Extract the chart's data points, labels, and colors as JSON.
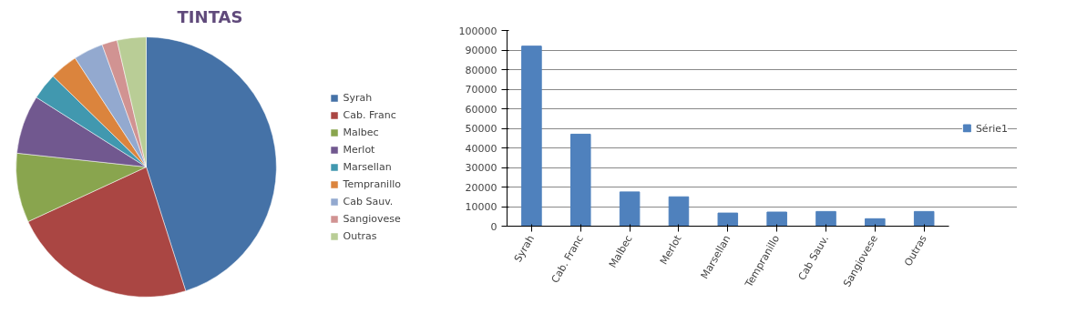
{
  "chart_data": [
    {
      "type": "pie",
      "title": "TINTAS",
      "categories": [
        "Syrah",
        "Cab. Franc",
        "Malbec",
        "Merlot",
        "Marsellan",
        "Tempranillo",
        "Cab Sauv.",
        "Sangiovese",
        "Outras"
      ],
      "values": [
        45.1,
        23.0,
        8.6,
        7.3,
        3.3,
        3.5,
        3.7,
        1.9,
        3.6
      ],
      "colors": [
        "#4572a7",
        "#aa4643",
        "#89a54e",
        "#71588f",
        "#4198af",
        "#db843d",
        "#93a9cf",
        "#d19392",
        "#b9cd96"
      ],
      "legend": "right"
    },
    {
      "type": "bar",
      "categories": [
        "Syrah",
        "Cab. Franc",
        "Malbec",
        "Merlot",
        "Marsellan",
        "Tempranillo",
        "Cab Sauv.",
        "Sangiovese",
        "Outras"
      ],
      "series": [
        {
          "name": "Série1",
          "color": "#4f81bd",
          "values": [
            92000,
            47000,
            17500,
            15000,
            6700,
            7200,
            7500,
            3800,
            7500
          ]
        }
      ],
      "ylim": [
        0,
        100000
      ],
      "yticks": [
        0,
        10000,
        20000,
        30000,
        40000,
        50000,
        60000,
        70000,
        80000,
        90000,
        100000
      ],
      "grid": "y",
      "legend": "right"
    }
  ]
}
